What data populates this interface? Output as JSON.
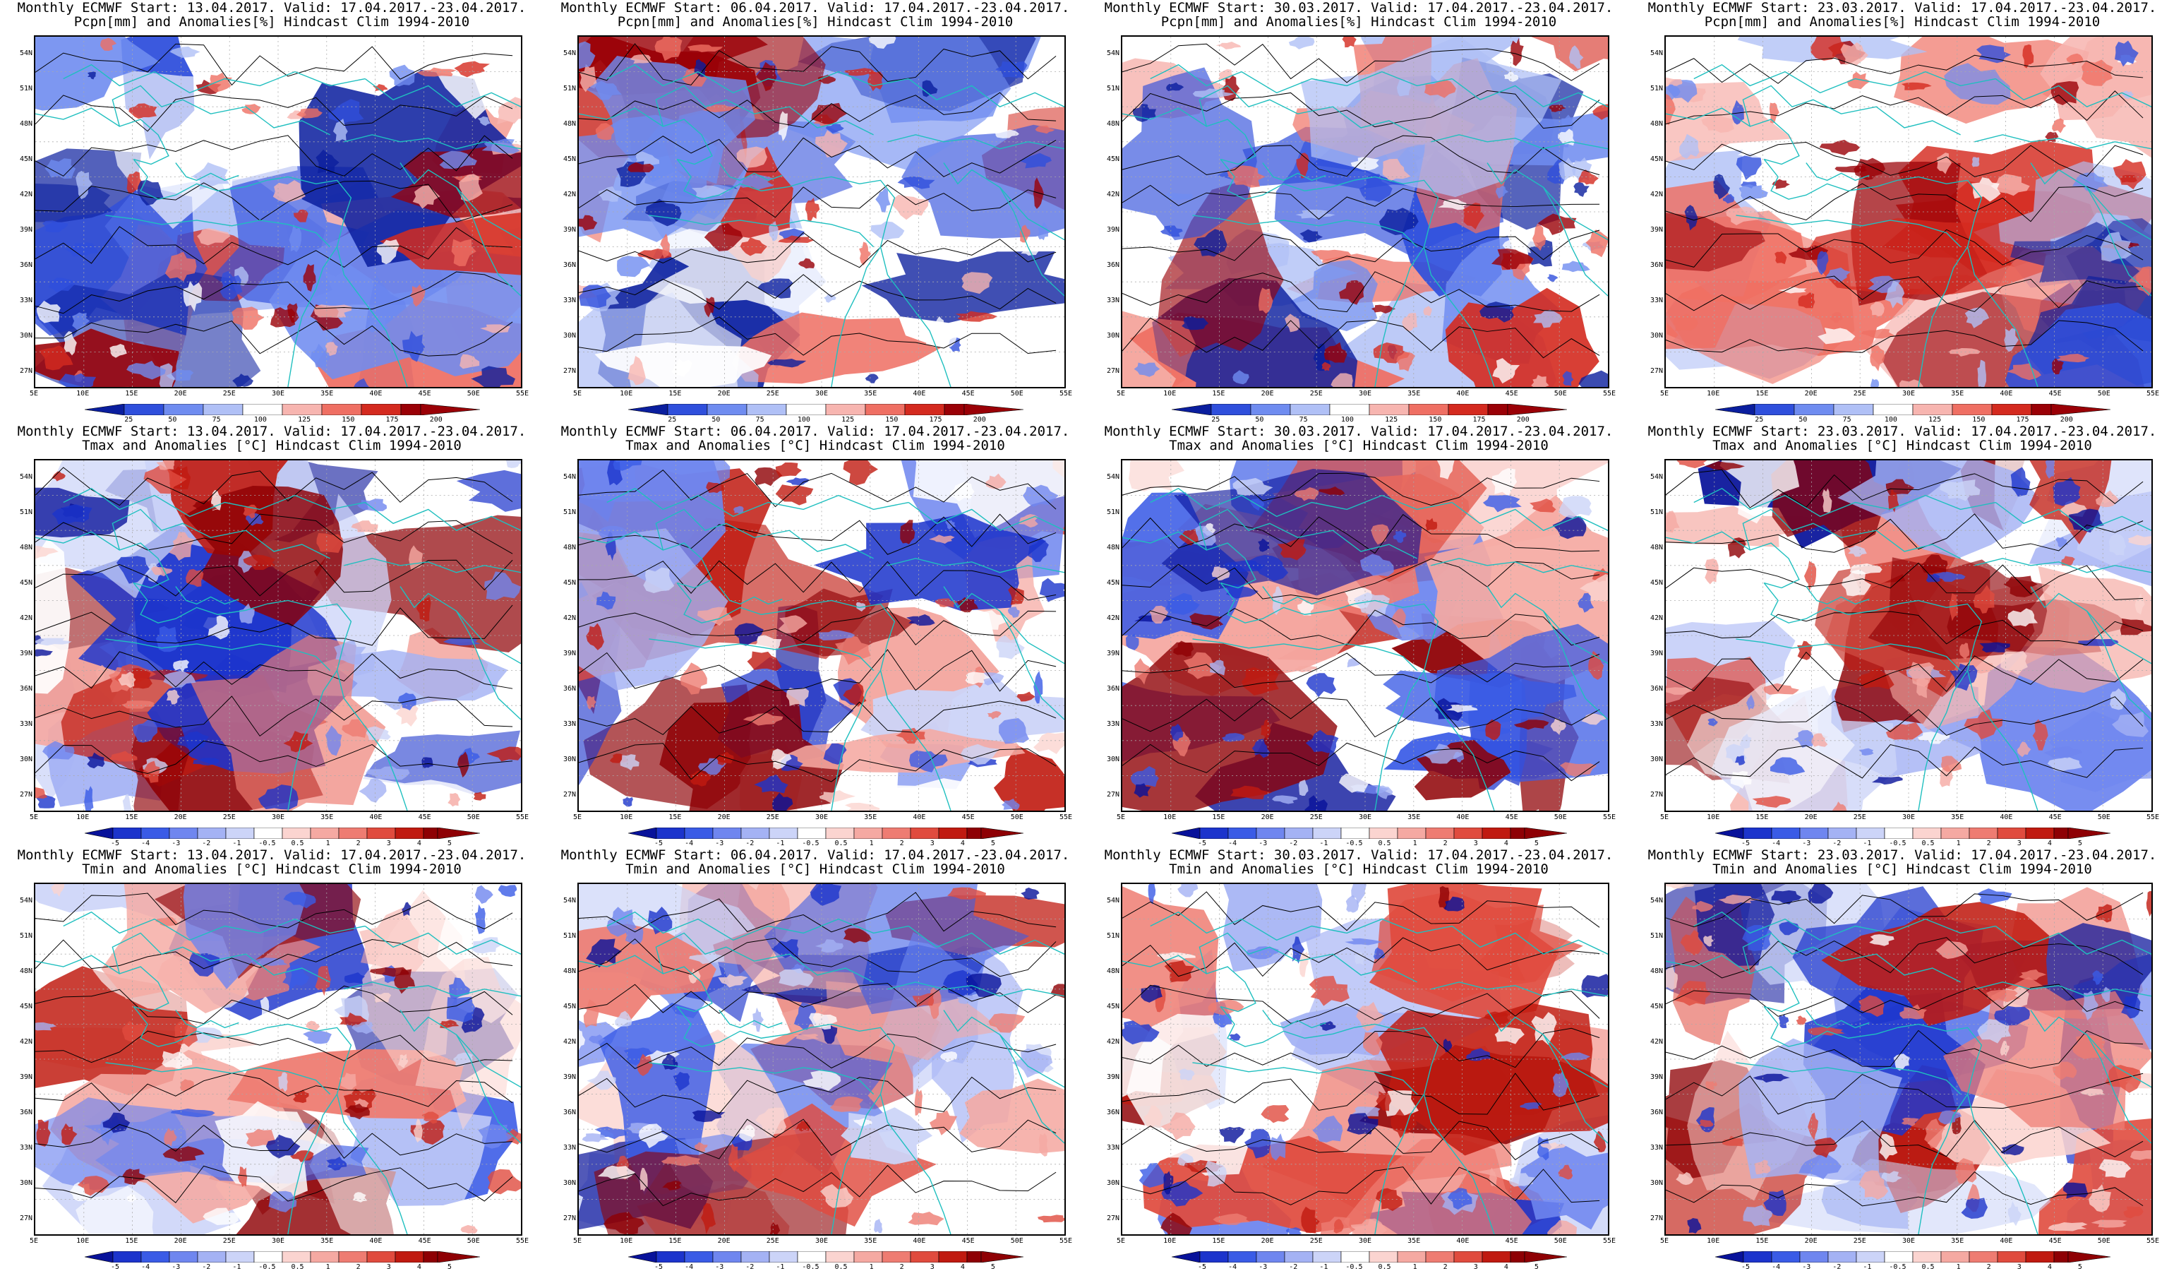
{
  "panels": [
    {
      "line1": "Monthly ECMWF Start: 13.04.2017. Valid: 17.04.2017.-23.04.2017.",
      "line2": "Pcpn[mm] and Anomalies[%] Hindcast Clim 1994-2010",
      "kind": "pcpn",
      "seed": 11
    },
    {
      "line1": "Monthly ECMWF Start: 06.04.2017. Valid: 17.04.2017.-23.04.2017.",
      "line2": "Pcpn[mm] and Anomalies[%] Hindcast Clim 1994-2010",
      "kind": "pcpn",
      "seed": 23
    },
    {
      "line1": "Monthly ECMWF Start: 30.03.2017. Valid: 17.04.2017.-23.04.2017.",
      "line2": "Pcpn[mm] and Anomalies[%] Hindcast Clim 1994-2010",
      "kind": "pcpn",
      "seed": 37
    },
    {
      "line1": "Monthly ECMWF Start: 23.03.2017. Valid: 17.04.2017.-23.04.2017.",
      "line2": "Pcpn[mm] and Anomalies[%] Hindcast Clim 1994-2010",
      "kind": "pcpn",
      "seed": 41
    },
    {
      "line1": "Monthly ECMWF Start: 13.04.2017. Valid: 17.04.2017.-23.04.2017.",
      "line2": "Tmax and Anomalies [°C] Hindcast Clim 1994-2010",
      "kind": "temp",
      "seed": 53
    },
    {
      "line1": "Monthly ECMWF Start: 06.04.2017. Valid: 17.04.2017.-23.04.2017.",
      "line2": "Tmax and Anomalies [°C] Hindcast Clim 1994-2010",
      "kind": "temp",
      "seed": 67
    },
    {
      "line1": "Monthly ECMWF Start: 30.03.2017. Valid: 17.04.2017.-23.04.2017.",
      "line2": "Tmax and Anomalies [°C] Hindcast Clim 1994-2010",
      "kind": "temp",
      "seed": 71
    },
    {
      "line1": "Monthly ECMWF Start: 23.03.2017. Valid: 17.04.2017.-23.04.2017.",
      "line2": "Tmax and Anomalies [°C] Hindcast Clim 1994-2010",
      "kind": "temp",
      "seed": 83
    },
    {
      "line1": "Monthly ECMWF Start: 13.04.2017. Valid: 17.04.2017.-23.04.2017.",
      "line2": "Tmin and Anomalies [°C] Hindcast Clim 1994-2010",
      "kind": "temp",
      "seed": 97
    },
    {
      "line1": "Monthly ECMWF Start: 06.04.2017. Valid: 17.04.2017.-23.04.2017.",
      "line2": "Tmin and Anomalies [°C] Hindcast Clim 1994-2010",
      "kind": "temp",
      "seed": 101
    },
    {
      "line1": "Monthly ECMWF Start: 30.03.2017. Valid: 17.04.2017.-23.04.2017.",
      "line2": "Tmin and Anomalies [°C] Hindcast Clim 1994-2010",
      "kind": "temp",
      "seed": 113
    },
    {
      "line1": "Monthly ECMWF Start: 23.03.2017. Valid: 17.04.2017.-23.04.2017.",
      "line2": "Tmin and Anomalies [°C] Hindcast Clim 1994-2010",
      "kind": "temp",
      "seed": 127
    }
  ],
  "lat_labels": [
    "54N",
    "51N",
    "48N",
    "45N",
    "42N",
    "39N",
    "36N",
    "33N",
    "30N",
    "27N"
  ],
  "lon_labels": [
    "5E",
    "10E",
    "15E",
    "20E",
    "25E",
    "30E",
    "35E",
    "40E",
    "45E",
    "50E",
    "55E"
  ],
  "pcpn_colorbar": {
    "labels": [
      "25",
      "50",
      "75",
      "100",
      "125",
      "150",
      "175",
      "200"
    ],
    "colors": [
      "#0a1e9e",
      "#2f4fdc",
      "#6f8cf0",
      "#b0c0f6",
      "#ffffff",
      "#f7b5b0",
      "#ef6f63",
      "#d42a1f",
      "#9a0006"
    ]
  },
  "temp_colorbar": {
    "labels": [
      "-5",
      "-4",
      "-3",
      "-2",
      "-1",
      "-0.5",
      "0.5",
      "1",
      "2",
      "3",
      "4",
      "5"
    ],
    "colors": [
      "#08129a",
      "#1c34cc",
      "#3a5be6",
      "#6f86ef",
      "#a4b2f4",
      "#ccd4f8",
      "#ffffff",
      "#fbd4d0",
      "#f5a9a2",
      "#ee7c72",
      "#e04b3e",
      "#c01a10",
      "#8e0004"
    ]
  },
  "colors": {
    "coast": "#1fbfbf",
    "contour": "#000000",
    "graticule": "#aaaaaa"
  }
}
